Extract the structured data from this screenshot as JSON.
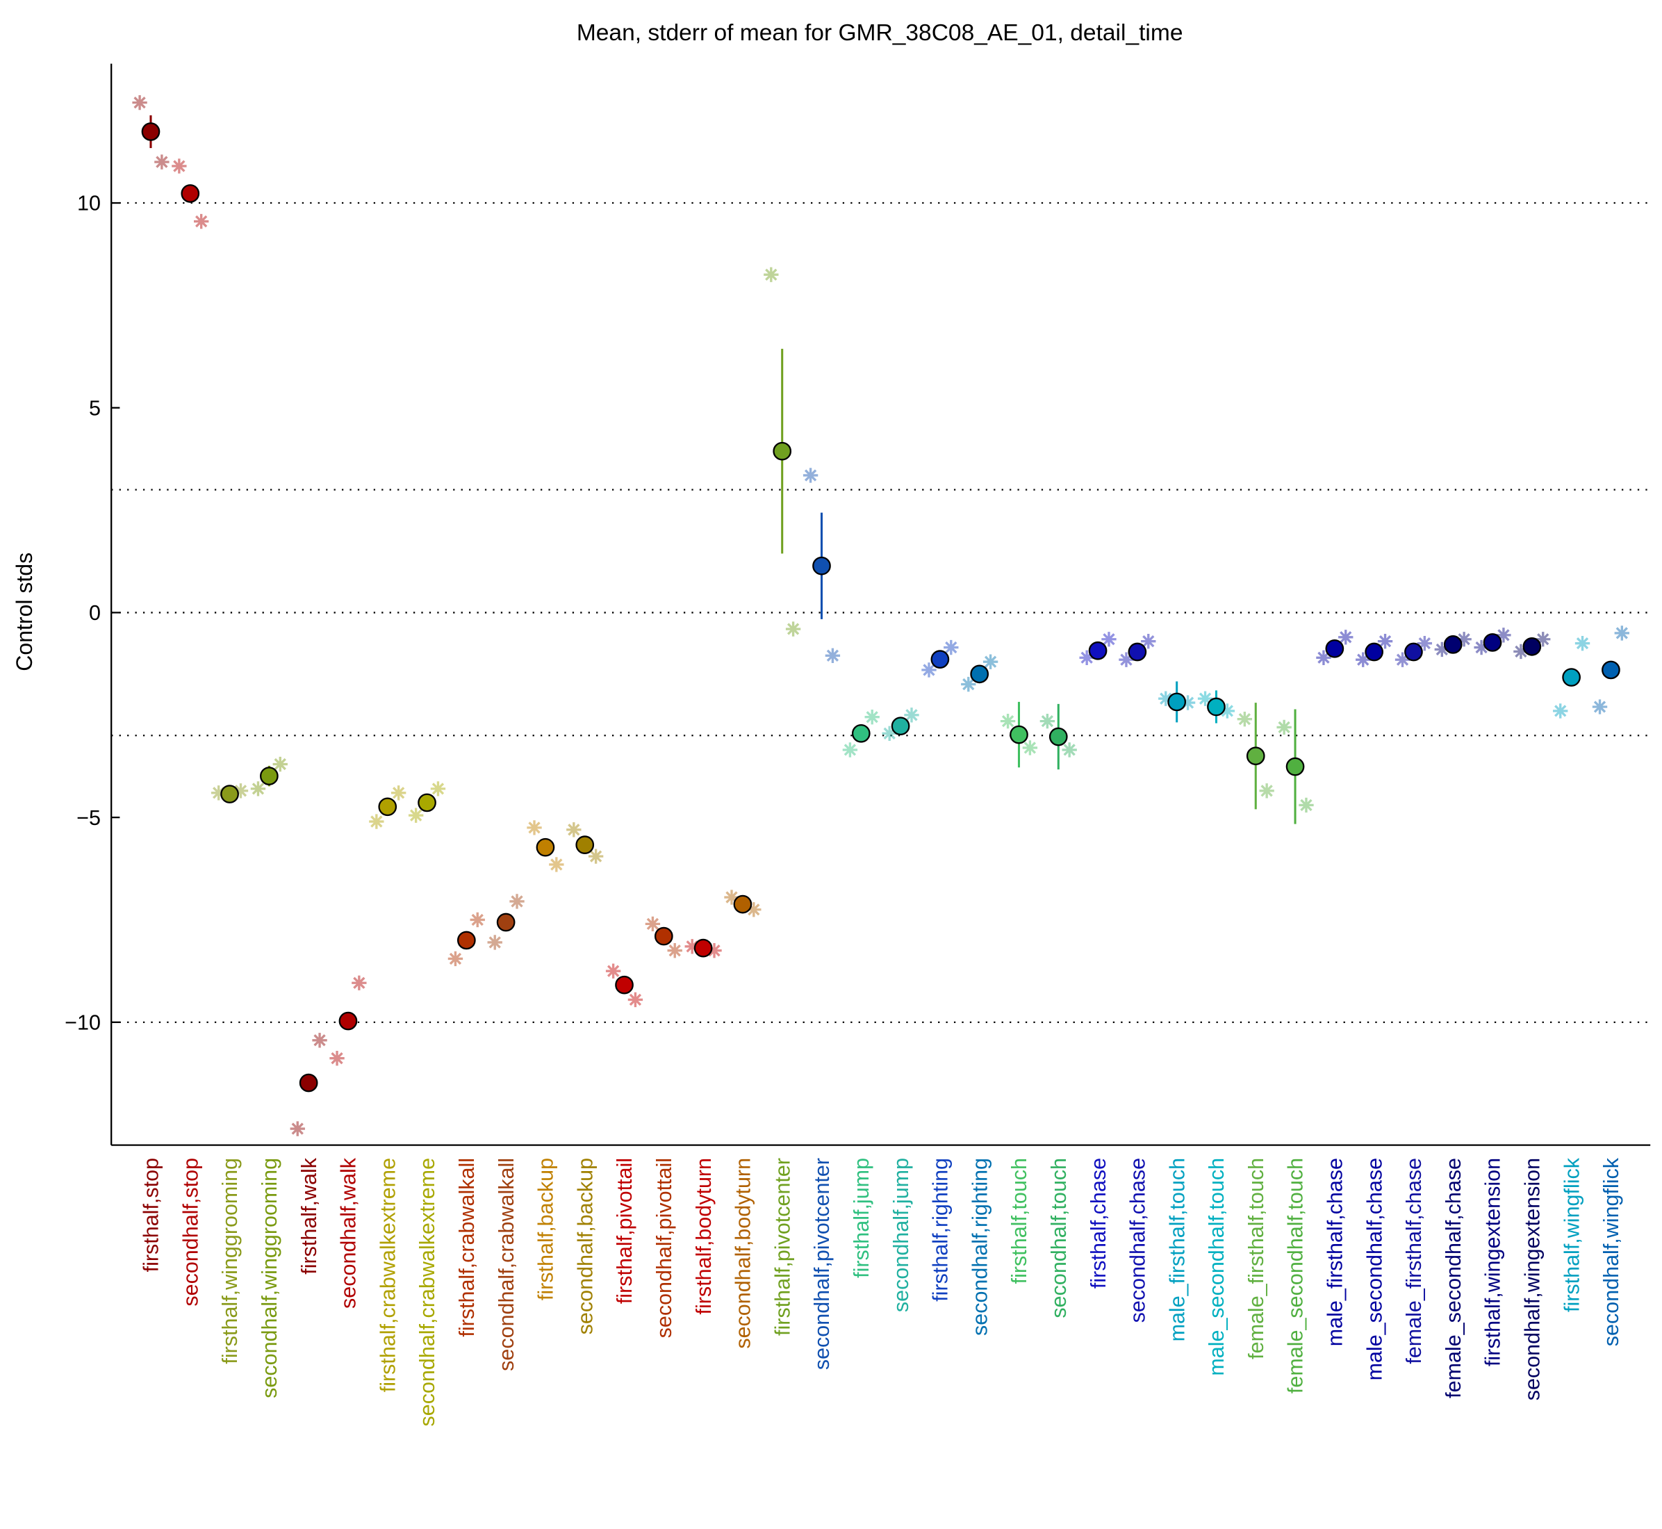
{
  "chart_data": {
    "type": "errorbar",
    "title": "Mean, stderr of mean for GMR_38C08_AE_01, detail_time",
    "ylabel": "Control stds",
    "categories": [
      "firsthalf,stop",
      "secondhalf,stop",
      "firsthalf,winggrooming",
      "secondhalf,winggrooming",
      "firsthalf,walk",
      "secondhalf,walk",
      "firsthalf,crabwalkextreme",
      "secondhalf,crabwalkextreme",
      "firsthalf,crabwalkall",
      "secondhalf,crabwalkall",
      "firsthalf,backup",
      "secondhalf,backup",
      "firsthalf,pivottail",
      "secondhalf,pivottail",
      "firsthalf,bodyturn",
      "secondhalf,bodyturn",
      "firsthalf,pivotcenter",
      "secondhalf,pivotcenter",
      "firsthalf,jump",
      "secondhalf,jump",
      "firsthalf,righting",
      "secondhalf,righting",
      "firsthalf,touch",
      "secondhalf,touch",
      "firsthalf,chase",
      "secondhalf,chase",
      "male_firsthalf,touch",
      "male_secondhalf,touch",
      "female_firsthalf,touch",
      "female_secondhalf,touch",
      "male_firsthalf,chase",
      "male_secondhalf,chase",
      "female_firsthalf,chase",
      "female_secondhalf,chase",
      "firsthalf,wingextension",
      "secondhalf,wingextension",
      "firsthalf,wingflick",
      "secondhalf,wingflick"
    ],
    "values": [
      11.74,
      10.23,
      -4.43,
      -3.99,
      -11.48,
      -9.97,
      -4.74,
      -4.64,
      -8.0,
      -7.56,
      -5.73,
      -5.67,
      -9.09,
      -7.9,
      -8.19,
      -7.12,
      3.94,
      1.14,
      -2.95,
      -2.77,
      -1.14,
      -1.5,
      -2.98,
      -3.03,
      -0.93,
      -0.96,
      -2.18,
      -2.3,
      -3.5,
      -3.76,
      -0.88,
      -0.96,
      -0.96,
      -0.78,
      -0.73,
      -0.83,
      -1.58,
      -1.4
    ],
    "errors": [
      0.4,
      0.15,
      0.1,
      0.25,
      0.1,
      0.1,
      0.1,
      0.1,
      0.1,
      0.1,
      0.15,
      0.1,
      0.1,
      0.1,
      0.1,
      0.1,
      2.5,
      1.3,
      0.1,
      0.1,
      0.1,
      0.1,
      0.8,
      0.8,
      0.1,
      0.1,
      0.5,
      0.4,
      1.3,
      1.4,
      0.1,
      0.1,
      0.1,
      0.1,
      0.1,
      0.1,
      0.1,
      0.2
    ],
    "asterisk_left": [
      12.45,
      10.9,
      -4.4,
      -4.3,
      -12.6,
      -10.88,
      -5.1,
      -4.95,
      -8.45,
      -8.05,
      -5.25,
      -5.3,
      -8.75,
      -7.6,
      -8.15,
      -6.95,
      8.25,
      3.35,
      -3.35,
      -2.95,
      -1.4,
      -1.75,
      -2.65,
      -2.65,
      -1.1,
      -1.15,
      -2.1,
      -2.1,
      -2.6,
      -2.8,
      -1.1,
      -1.15,
      -1.15,
      -0.9,
      -0.85,
      -0.95,
      -2.4,
      -2.3
    ],
    "asterisk_right": [
      11.0,
      9.55,
      -4.35,
      -3.7,
      -10.44,
      -9.04,
      -4.4,
      -4.3,
      -7.5,
      -7.05,
      -6.15,
      -5.95,
      -9.45,
      -8.25,
      -8.25,
      -7.25,
      -0.4,
      -1.05,
      -2.55,
      -2.5,
      -0.85,
      -1.2,
      -3.3,
      -3.35,
      -0.65,
      -0.7,
      -2.2,
      -2.4,
      -4.35,
      -4.7,
      -0.6,
      -0.7,
      -0.75,
      -0.65,
      -0.55,
      -0.65,
      -0.75,
      -0.5
    ],
    "colors": [
      "#8b0000",
      "#b00000",
      "#8a9a1a",
      "#7a9a10",
      "#8b0000",
      "#b00000",
      "#b0a000",
      "#a8a800",
      "#b03000",
      "#a04010",
      "#c08000",
      "#a08000",
      "#c00000",
      "#b03000",
      "#c00000",
      "#b06000",
      "#70a020",
      "#1050b0",
      "#30c080",
      "#20b0a0",
      "#1040c0",
      "#0070b0",
      "#40c060",
      "#30b060",
      "#1010c0",
      "#1010b0",
      "#00a0c0",
      "#00b0c0",
      "#60b040",
      "#50b040",
      "#0000a0",
      "#0000a0",
      "#1010a0",
      "#000070",
      "#000080",
      "#000060",
      "#00a0c0",
      "#0060b0"
    ],
    "xlim": [
      0,
      39
    ],
    "ylim": [
      -13,
      13.4
    ],
    "yticks": [
      {
        "value": -10,
        "label": "−10"
      },
      {
        "value": -5,
        "label": "−5"
      },
      0,
      5,
      10
    ],
    "grid_lines": [
      -10,
      -3,
      0,
      3,
      10
    ]
  }
}
